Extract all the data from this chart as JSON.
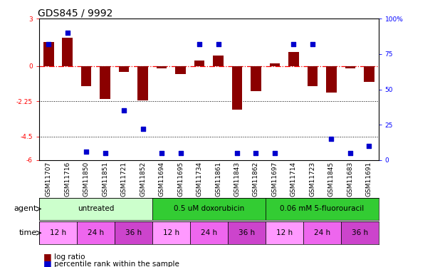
{
  "title": "GDS845 / 9992",
  "samples": [
    "GSM11707",
    "GSM11716",
    "GSM11850",
    "GSM11851",
    "GSM11721",
    "GSM11852",
    "GSM11694",
    "GSM11695",
    "GSM11734",
    "GSM11861",
    "GSM11843",
    "GSM11862",
    "GSM11697",
    "GSM11714",
    "GSM11723",
    "GSM11845",
    "GSM11683",
    "GSM11691"
  ],
  "log_ratio": [
    1.5,
    1.8,
    -1.3,
    -2.1,
    -0.4,
    -2.2,
    -0.15,
    -0.5,
    0.35,
    0.65,
    -2.8,
    -1.6,
    0.15,
    0.9,
    -1.3,
    -1.7,
    -0.15,
    -1.0
  ],
  "percentile": [
    82,
    90,
    6,
    5,
    35,
    22,
    5,
    5,
    82,
    82,
    5,
    5,
    5,
    82,
    82,
    15,
    5,
    10
  ],
  "ylim_left": [
    -6,
    3
  ],
  "ylim_right": [
    0,
    100
  ],
  "yticks_left": [
    3,
    0,
    -2.25,
    -4.5,
    -6
  ],
  "yticks_right": [
    100,
    75,
    50,
    25,
    0
  ],
  "hlines_dotted": [
    -2.25,
    -4.5
  ],
  "hline_dashdot": 0,
  "bar_color": "#8B0000",
  "scatter_color": "#0000CD",
  "agent_groups": [
    {
      "label": "untreated",
      "start": 0,
      "end": 6,
      "color": "#CCFFCC"
    },
    {
      "label": "0.5 uM doxorubicin",
      "start": 6,
      "end": 12,
      "color": "#33CC33"
    },
    {
      "label": "0.06 mM 5-fluorouracil",
      "start": 12,
      "end": 18,
      "color": "#33CC33"
    }
  ],
  "time_groups": [
    {
      "label": "12 h",
      "start": 0,
      "end": 2,
      "color": "#FF99FF"
    },
    {
      "label": "24 h",
      "start": 2,
      "end": 4,
      "color": "#EE66EE"
    },
    {
      "label": "36 h",
      "start": 4,
      "end": 6,
      "color": "#CC44CC"
    },
    {
      "label": "12 h",
      "start": 6,
      "end": 8,
      "color": "#FF99FF"
    },
    {
      "label": "24 h",
      "start": 8,
      "end": 10,
      "color": "#EE66EE"
    },
    {
      "label": "36 h",
      "start": 10,
      "end": 12,
      "color": "#CC44CC"
    },
    {
      "label": "12 h",
      "start": 12,
      "end": 14,
      "color": "#FF99FF"
    },
    {
      "label": "24 h",
      "start": 14,
      "end": 16,
      "color": "#EE66EE"
    },
    {
      "label": "36 h",
      "start": 16,
      "end": 18,
      "color": "#CC44CC"
    }
  ],
  "legend_items": [
    {
      "label": "log ratio",
      "color": "#8B0000"
    },
    {
      "label": "percentile rank within the sample",
      "color": "#0000CD"
    }
  ],
  "scatter_marker": "s",
  "scatter_size": 14,
  "bar_width": 0.55,
  "title_fontsize": 10,
  "tick_fontsize": 6.5,
  "label_fontsize": 7.5,
  "row_label_fontsize": 8,
  "agent_fontsize": 7.5,
  "time_fontsize": 7.5
}
